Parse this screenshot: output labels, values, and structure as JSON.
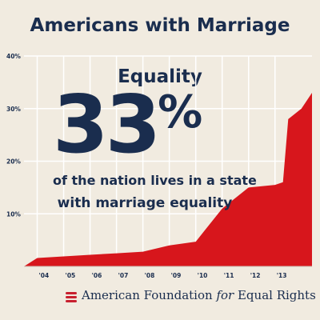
{
  "title": "Americans with Marriage Equality",
  "headline": {
    "number": "33",
    "percent_sign": "%",
    "caption_line1": "of the nation lives in a state",
    "caption_line2": "with marriage equality"
  },
  "footer": {
    "org_part1": "American Foundation ",
    "org_for": "for",
    "org_part2": " Equal Rights"
  },
  "colors": {
    "navy": "#1a2d4e",
    "red": "#d7161c",
    "background": "#f1ebe0",
    "grid": "#ffffff"
  },
  "chart_data": {
    "type": "area",
    "title": "Americans with Marriage Equality",
    "xlabel": "",
    "ylabel": "",
    "x_tick_labels": [
      "'04",
      "'05",
      "'06",
      "'07",
      "'08",
      "'09",
      "'10",
      "'11",
      "'12",
      "'13"
    ],
    "y_tick_labels": [
      "10%",
      "20%",
      "30%",
      "40%"
    ],
    "y_ticks": [
      10,
      20,
      30,
      40
    ],
    "ylim": [
      0,
      40
    ],
    "xlim": [
      2003.5,
      2014.4
    ],
    "grid": true,
    "series": [
      {
        "x": [
          2003.5,
          2004.0,
          2005.0,
          2006.0,
          2007.0,
          2008.0,
          2009.0,
          2010.0,
          2011.0,
          2012.0,
          2013.0,
          2013.3,
          2013.5,
          2014.0,
          2014.4
        ],
        "values": [
          0.0,
          1.6,
          1.9,
          2.2,
          2.5,
          2.8,
          4.0,
          4.7,
          11.0,
          15.0,
          15.5,
          16.0,
          28.0,
          30.0,
          33.0
        ]
      }
    ]
  }
}
